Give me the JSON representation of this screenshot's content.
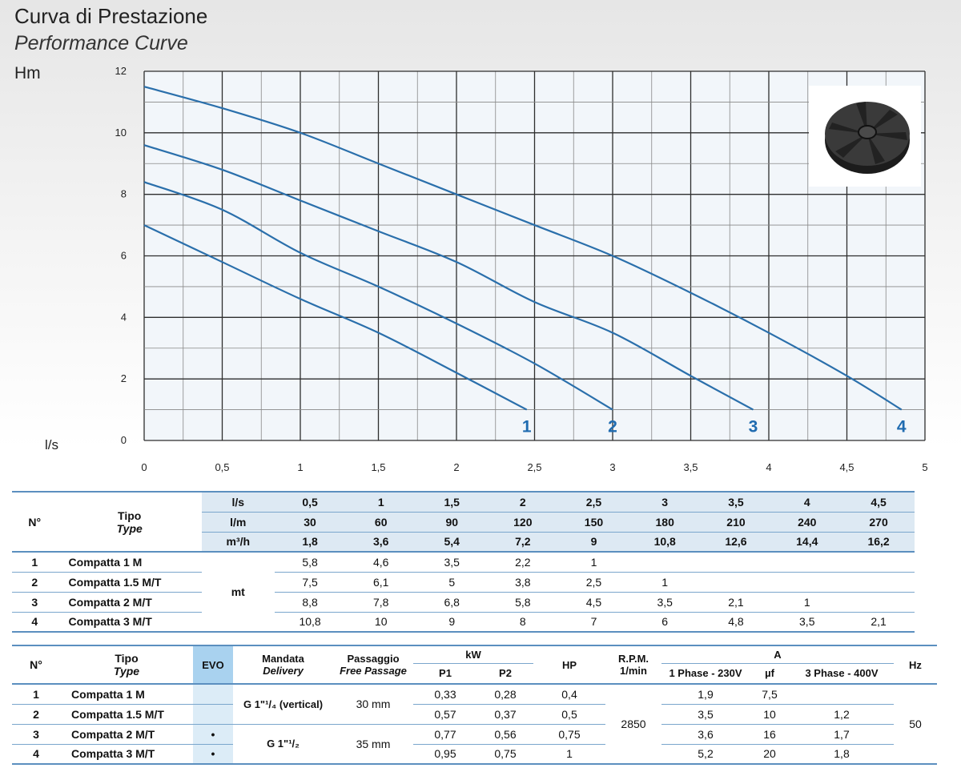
{
  "header": {
    "title_it": "Curva di Prestazione",
    "title_en": "Performance Curve"
  },
  "chart_data": {
    "type": "line",
    "ylabel": "Hm",
    "xlabel": "l/s",
    "xlim": [
      0,
      5
    ],
    "ylim": [
      0,
      12
    ],
    "x_ticks": [
      "0",
      "0,5",
      "1",
      "1,5",
      "2",
      "2,5",
      "3",
      "3,5",
      "4",
      "4,5",
      "5"
    ],
    "y_ticks": [
      "0",
      "2",
      "4",
      "6",
      "8",
      "10",
      "12"
    ],
    "grid": true,
    "colors": {
      "line": "#2a6fab",
      "grid": "#3a3a3a",
      "label": "#1f6bb0"
    },
    "icon": "impeller-image",
    "series": [
      {
        "name": "1",
        "x": [
          0,
          0.5,
          1,
          1.5,
          2,
          2.45
        ],
        "y": [
          7.0,
          5.8,
          4.6,
          3.5,
          2.2,
          1.0
        ]
      },
      {
        "name": "2",
        "x": [
          0,
          0.5,
          1,
          1.5,
          2,
          2.5,
          3.0
        ],
        "y": [
          8.4,
          7.5,
          6.1,
          5.0,
          3.8,
          2.5,
          1.0
        ]
      },
      {
        "name": "3",
        "x": [
          0,
          0.5,
          1,
          1.5,
          2,
          2.5,
          3,
          3.5,
          3.9
        ],
        "y": [
          9.6,
          8.8,
          7.8,
          6.8,
          5.8,
          4.5,
          3.5,
          2.1,
          1.0
        ]
      },
      {
        "name": "4",
        "x": [
          0,
          0.5,
          1,
          1.5,
          2,
          2.5,
          3,
          3.5,
          4,
          4.5,
          4.85
        ],
        "y": [
          11.5,
          10.8,
          10.0,
          9.0,
          8.0,
          7.0,
          6.0,
          4.8,
          3.5,
          2.1,
          1.0
        ]
      }
    ]
  },
  "table1": {
    "h_no": "N°",
    "h_tipo": "Tipo",
    "h_type": "Type",
    "unit_ls": "l/s",
    "unit_lm": "l/m",
    "unit_m3h": "m³/h",
    "unit_mt": "mt",
    "ls": [
      "0,5",
      "1",
      "1,5",
      "2",
      "2,5",
      "3",
      "3,5",
      "4",
      "4,5"
    ],
    "lm": [
      "30",
      "60",
      "90",
      "120",
      "150",
      "180",
      "210",
      "240",
      "270"
    ],
    "m3h": [
      "1,8",
      "3,6",
      "5,4",
      "7,2",
      "9",
      "10,8",
      "12,6",
      "14,4",
      "16,2"
    ],
    "rows": [
      {
        "n": "1",
        "name": "Compatta 1 M",
        "v": [
          "5,8",
          "4,6",
          "3,5",
          "2,2",
          "1",
          "",
          "",
          "",
          ""
        ]
      },
      {
        "n": "2",
        "name": "Compatta 1.5 M/T",
        "v": [
          "7,5",
          "6,1",
          "5",
          "3,8",
          "2,5",
          "1",
          "",
          "",
          ""
        ]
      },
      {
        "n": "3",
        "name": "Compatta 2 M/T",
        "v": [
          "8,8",
          "7,8",
          "6,8",
          "5,8",
          "4,5",
          "3,5",
          "2,1",
          "1",
          ""
        ]
      },
      {
        "n": "4",
        "name": "Compatta 3 M/T",
        "v": [
          "10,8",
          "10",
          "9",
          "8",
          "7",
          "6",
          "4,8",
          "3,5",
          "2,1"
        ]
      }
    ]
  },
  "table2": {
    "h_no": "N°",
    "h_tipo": "Tipo",
    "h_type": "Type",
    "h_evo": "EVO",
    "h_mandata": "Mandata",
    "h_delivery": "Delivery",
    "h_passaggio": "Passaggio",
    "h_free": "Free Passage",
    "h_kw": "kW",
    "h_p1": "P1",
    "h_p2": "P2",
    "h_hp": "HP",
    "h_rpm": "R.P.M.",
    "h_rpm2": "1/min",
    "h_a": "A",
    "h_1ph": "1 Phase - 230V",
    "h_uf": "µf",
    "h_3ph": "3 Phase - 400V",
    "h_hz": "Hz",
    "delivery_a": "G 1\"¹/₄ (vertical)",
    "delivery_b": "G 1\"¹/₂",
    "passage_a": "30 mm",
    "passage_b": "35 mm",
    "rpm": "2850",
    "hz": "50",
    "rows": [
      {
        "n": "1",
        "name": "Compatta 1 M",
        "evo": "",
        "p1": "0,33",
        "p2": "0,28",
        "hp": "0,4",
        "a1": "1,9",
        "uf": "7,5",
        "a3": ""
      },
      {
        "n": "2",
        "name": "Compatta 1.5 M/T",
        "evo": "",
        "p1": "0,57",
        "p2": "0,37",
        "hp": "0,5",
        "a1": "3,5",
        "uf": "10",
        "a3": "1,2"
      },
      {
        "n": "3",
        "name": "Compatta 2 M/T",
        "evo": "•",
        "p1": "0,77",
        "p2": "0,56",
        "hp": "0,75",
        "a1": "3,6",
        "uf": "16",
        "a3": "1,7"
      },
      {
        "n": "4",
        "name": "Compatta 3 M/T",
        "evo": "•",
        "p1": "0,95",
        "p2": "0,75",
        "hp": "1",
        "a1": "5,2",
        "uf": "20",
        "a3": "1,8"
      }
    ]
  }
}
